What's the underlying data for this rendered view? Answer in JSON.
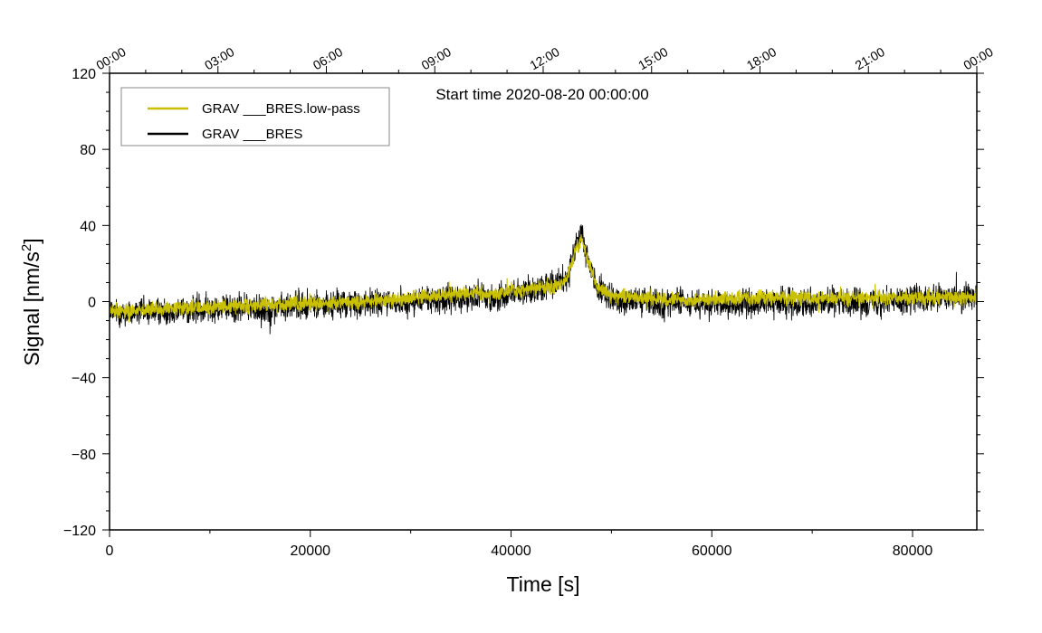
{
  "chart_data": {
    "type": "line",
    "annotation": "Start time 2020-08-20 00:00:00",
    "xlabel": "Time [s]",
    "ylabel": "Signal [nm/s",
    "ylabel_sup": "2",
    "ylabel_end": "]",
    "xlim": [
      0,
      86400
    ],
    "ylim": [
      -120,
      120
    ],
    "x_ticks": [
      0,
      20000,
      40000,
      60000,
      80000
    ],
    "x_tick_labels": [
      "0",
      "20000",
      "40000",
      "60000",
      "80000"
    ],
    "x_minor_step": 10000,
    "y_ticks": [
      -120,
      -80,
      -40,
      0,
      40,
      80,
      120
    ],
    "y_tick_labels": [
      "−120",
      "−80",
      "−40",
      "0",
      "40",
      "80",
      "120"
    ],
    "y_minor_step": 10,
    "top_axis_ticks_s": [
      0,
      10800,
      21600,
      32400,
      43200,
      54000,
      64800,
      75600,
      86400
    ],
    "top_axis_labels": [
      "00:00",
      "03:00",
      "06:00",
      "09:00",
      "12:00",
      "15:00",
      "18:00",
      "21:00",
      "00:00"
    ],
    "legend": [
      {
        "label": "GRAV ___BRES.low-pass",
        "color": "#c8c000"
      },
      {
        "label": "GRAV ___BRES",
        "color": "#000000"
      }
    ],
    "series": [
      {
        "name": "GRAV ___BRES",
        "color": "#000000",
        "noise_amplitude": 7,
        "x": [
          0,
          5000,
          10000,
          14000,
          15200,
          16500,
          20000,
          25000,
          30000,
          35000,
          37000,
          38000,
          40000,
          44000,
          45500,
          46500,
          47000,
          47500,
          48500,
          50000,
          55000,
          57000,
          60000,
          65000,
          70000,
          75000,
          80000,
          86400
        ],
        "y": [
          -6,
          -5,
          -4,
          -3,
          -5,
          -3,
          -2,
          -1,
          0,
          2,
          4,
          1,
          5,
          8,
          12,
          30,
          36,
          25,
          8,
          1,
          -1,
          0,
          -2,
          -1,
          0,
          0,
          1,
          2
        ]
      },
      {
        "name": "GRAV ___BRES.low-pass",
        "color": "#c8c000",
        "noise_amplitude": 3.5,
        "x": [
          0,
          5000,
          10000,
          15000,
          20000,
          25000,
          30000,
          35000,
          36500,
          38000,
          40000,
          44000,
          45500,
          46500,
          47000,
          47500,
          48500,
          50000,
          55000,
          60000,
          65000,
          70000,
          75000,
          80000,
          86400
        ],
        "y": [
          -5,
          -4,
          -3,
          -2,
          -1,
          0,
          2,
          4,
          5,
          3,
          6,
          8,
          11,
          28,
          33,
          24,
          8,
          3,
          1,
          1,
          2,
          2,
          2,
          2,
          2
        ]
      }
    ]
  }
}
